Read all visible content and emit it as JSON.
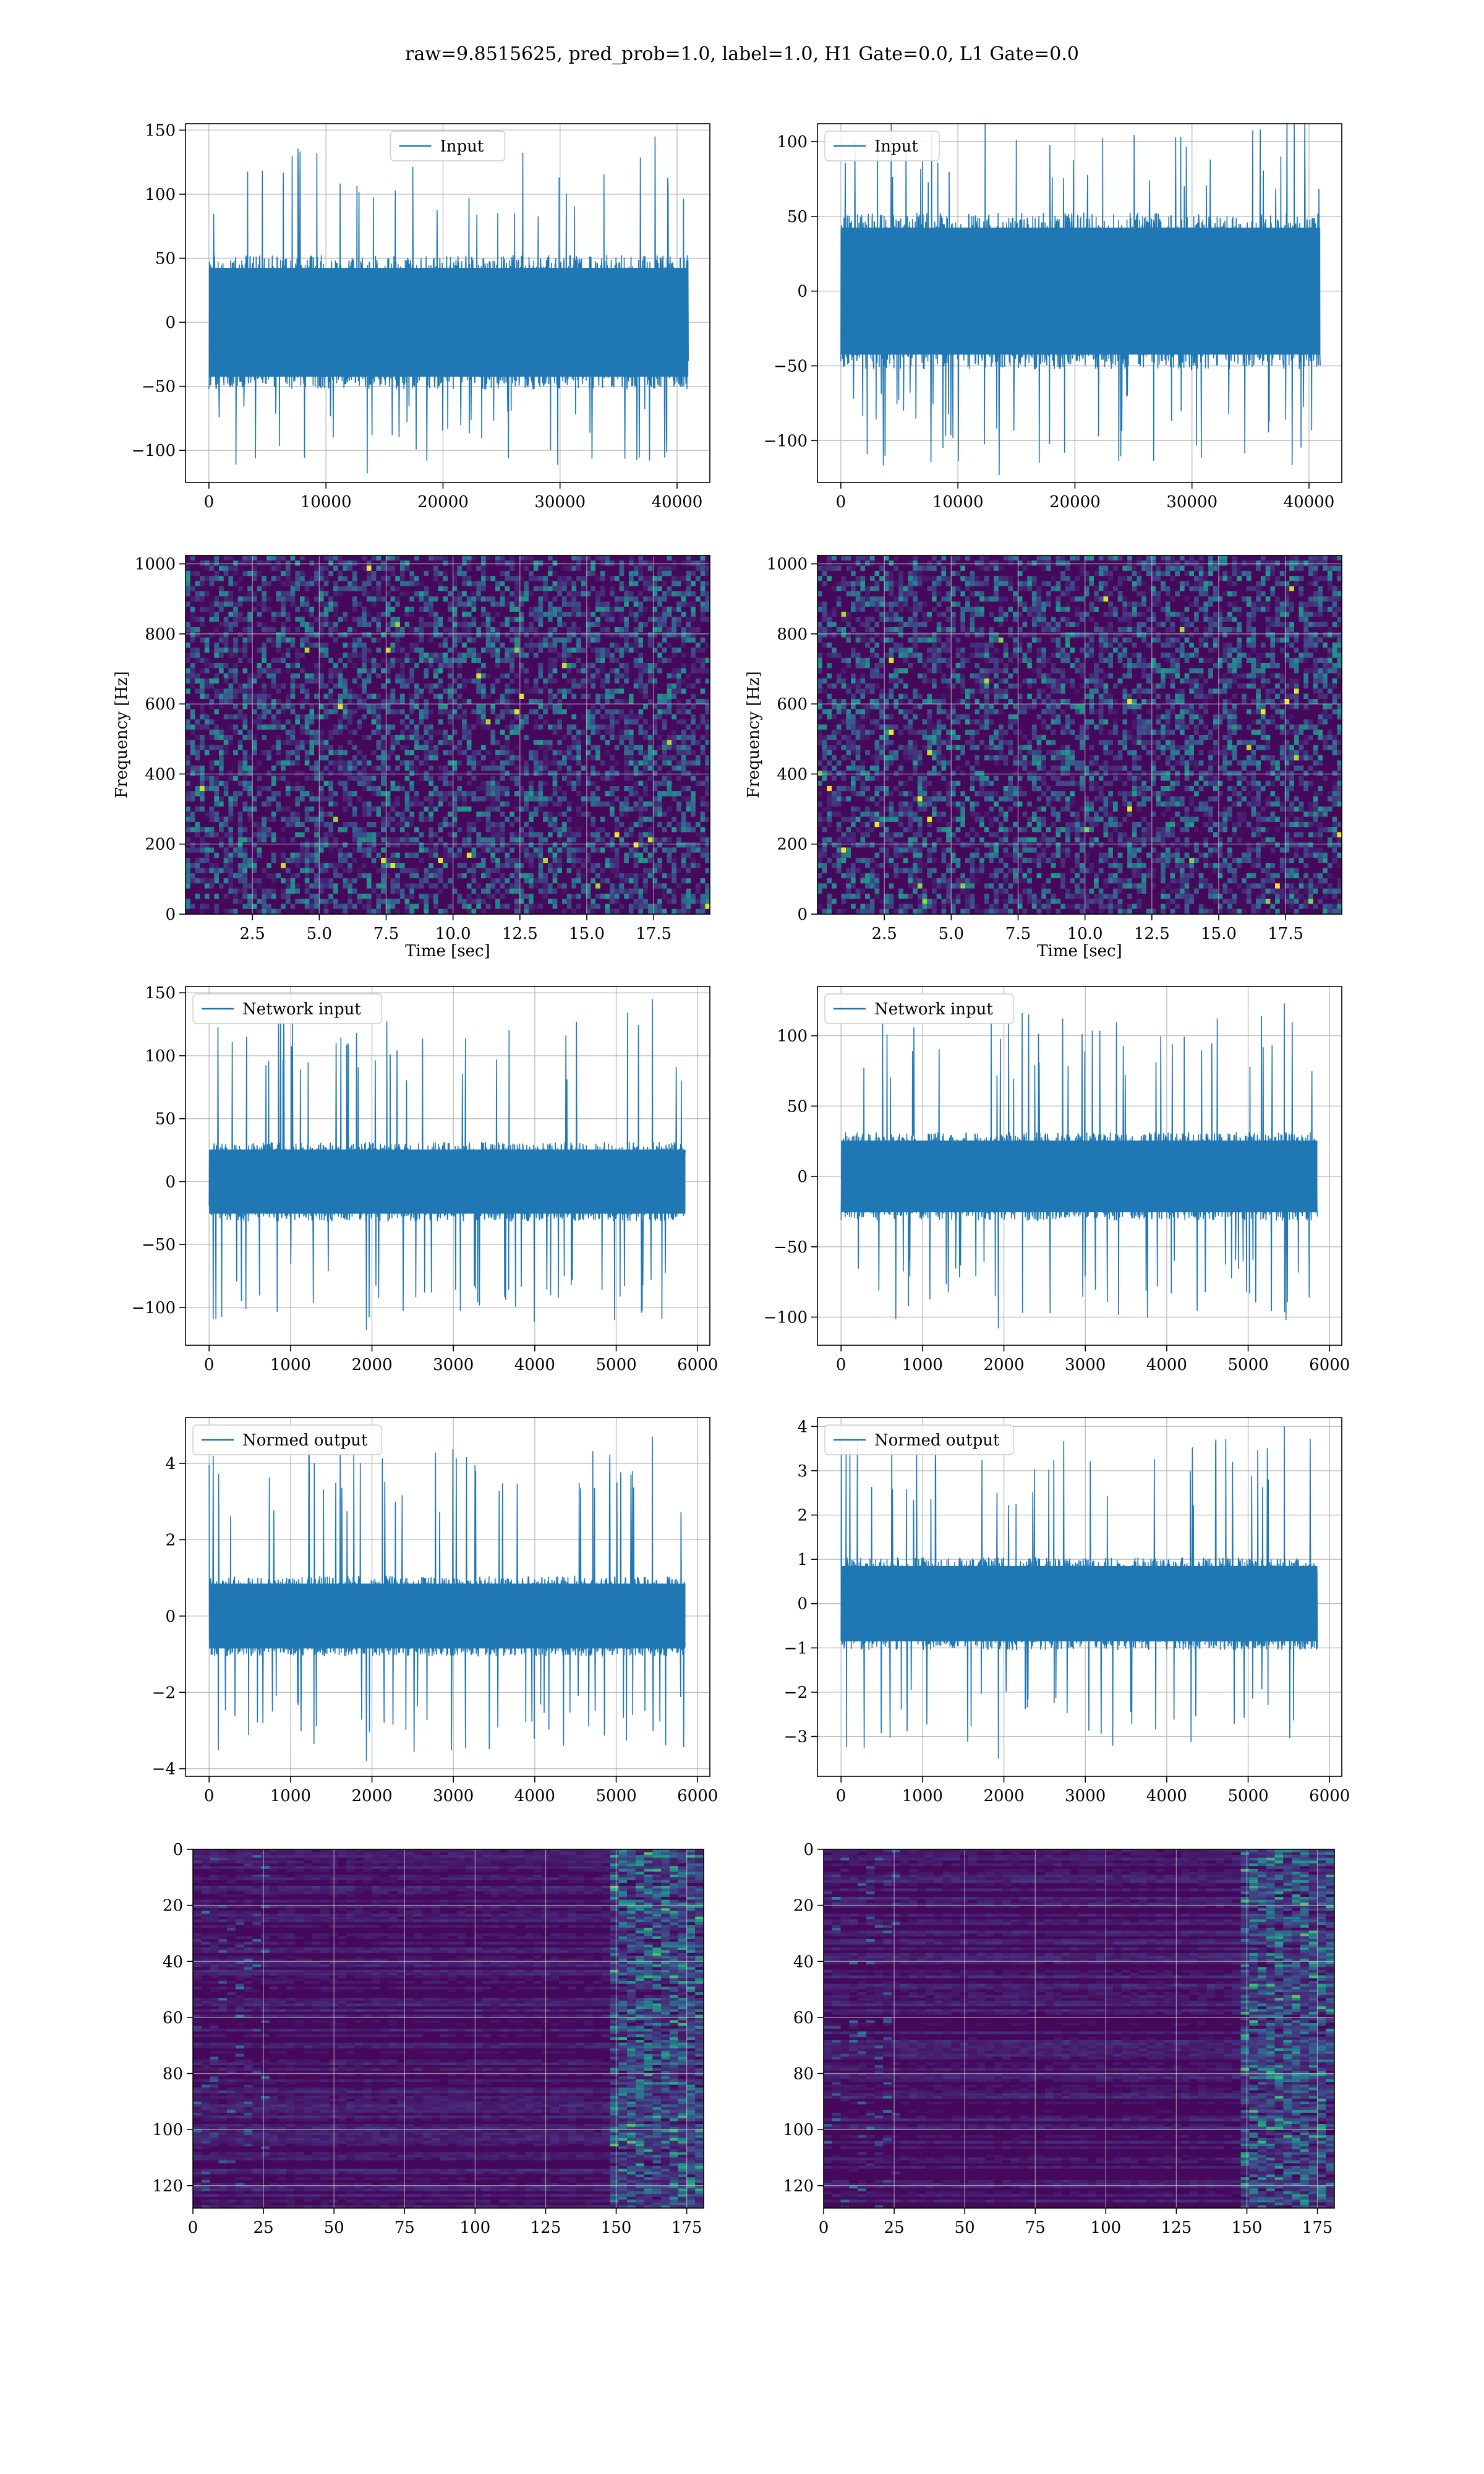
{
  "figure": {
    "title": "raw=9.8515625, pred_prob=1.0, label=1.0, H1 Gate=0.0, L1 Gate=0.0"
  },
  "colors": {
    "series": "#1f77b4",
    "grid": "#b0b0b0",
    "viridis_dark": "#440154",
    "viridis_mid": "#21918c",
    "viridis_bright": "#fde725"
  },
  "chart_data": [
    {
      "id": "h1-input",
      "type": "line",
      "legend": "Input",
      "legend_loc": "upper center",
      "xlim": [
        -2000,
        42800
      ],
      "ylim": [
        -125,
        155
      ],
      "xticks": [
        0,
        10000,
        20000,
        30000,
        40000
      ],
      "yticks": [
        -100,
        -50,
        0,
        50,
        100,
        150
      ],
      "xlabel": "",
      "ylabel": "",
      "x_extent": [
        0,
        40960
      ],
      "band": [
        -50,
        50
      ],
      "spike_max": 145,
      "spike_min": -118,
      "grid": true
    },
    {
      "id": "l1-input",
      "type": "line",
      "legend": "Input",
      "legend_loc": "upper left",
      "xlim": [
        -2000,
        42800
      ],
      "ylim": [
        -128,
        112
      ],
      "xticks": [
        0,
        10000,
        20000,
        30000,
        40000
      ],
      "yticks": [
        -100,
        -50,
        0,
        50,
        100
      ],
      "xlabel": "",
      "ylabel": "",
      "x_extent": [
        0,
        40960
      ],
      "band": [
        -50,
        50
      ],
      "spike_max": 123,
      "spike_min": -123,
      "grid": true
    },
    {
      "id": "h1-spectrogram",
      "type": "heatmap",
      "xlim": [
        0,
        19.6
      ],
      "ylim": [
        0,
        1024
      ],
      "xticks": [
        2.5,
        5.0,
        7.5,
        10.0,
        12.5,
        15.0,
        17.5
      ],
      "yticks": [
        0,
        200,
        400,
        600,
        800,
        1000
      ],
      "xlabel": "Time [sec]",
      "ylabel": "Frequency [Hz]",
      "colormap": "viridis",
      "grid": true
    },
    {
      "id": "l1-spectrogram",
      "type": "heatmap",
      "xlim": [
        0,
        19.6
      ],
      "ylim": [
        0,
        1024
      ],
      "xticks": [
        2.5,
        5.0,
        7.5,
        10.0,
        12.5,
        15.0,
        17.5
      ],
      "yticks": [
        0,
        200,
        400,
        600,
        800,
        1000
      ],
      "xlabel": "Time [sec]",
      "ylabel": "Frequency [Hz]",
      "colormap": "viridis",
      "grid": true
    },
    {
      "id": "h1-network-input",
      "type": "line",
      "legend": "Network input",
      "legend_loc": "upper left",
      "xlim": [
        -290,
        6150
      ],
      "ylim": [
        -130,
        155
      ],
      "xticks": [
        0,
        1000,
        2000,
        3000,
        4000,
        5000,
        6000
      ],
      "yticks": [
        -100,
        -50,
        0,
        50,
        100,
        150
      ],
      "xlabel": "",
      "ylabel": "",
      "x_extent": [
        0,
        5850
      ],
      "band": [
        -30,
        30
      ],
      "spike_max": 145,
      "spike_min": -118,
      "grid": true
    },
    {
      "id": "l1-network-input",
      "type": "line",
      "legend": "Network input",
      "legend_loc": "upper left",
      "xlim": [
        -290,
        6150
      ],
      "ylim": [
        -120,
        135
      ],
      "xticks": [
        0,
        1000,
        2000,
        3000,
        4000,
        5000,
        6000
      ],
      "yticks": [
        -100,
        -50,
        0,
        50,
        100
      ],
      "xlabel": "",
      "ylabel": "",
      "x_extent": [
        0,
        5850
      ],
      "band": [
        -30,
        30
      ],
      "spike_max": 123,
      "spike_min": -108,
      "grid": true
    },
    {
      "id": "h1-normed-output",
      "type": "line",
      "legend": "Normed output",
      "legend_loc": "upper left",
      "xlim": [
        -290,
        6150
      ],
      "ylim": [
        -4.2,
        5.2
      ],
      "xticks": [
        0,
        1000,
        2000,
        3000,
        4000,
        5000,
        6000
      ],
      "yticks": [
        -4,
        -2,
        0,
        2,
        4
      ],
      "xlabel": "",
      "ylabel": "",
      "x_extent": [
        0,
        5850
      ],
      "band": [
        -1.0,
        1.0
      ],
      "spike_max": 4.7,
      "spike_min": -3.8,
      "grid": true
    },
    {
      "id": "l1-normed-output",
      "type": "line",
      "legend": "Normed output",
      "legend_loc": "upper left",
      "xlim": [
        -290,
        6150
      ],
      "ylim": [
        -3.9,
        4.2
      ],
      "xticks": [
        0,
        1000,
        2000,
        3000,
        4000,
        5000,
        6000
      ],
      "yticks": [
        -3,
        -2,
        -1,
        0,
        1,
        2,
        3,
        4
      ],
      "xlabel": "",
      "ylabel": "",
      "x_extent": [
        0,
        5850
      ],
      "band": [
        -1.0,
        1.0
      ],
      "spike_max": 4.0,
      "spike_min": -3.5,
      "grid": true
    },
    {
      "id": "h1-feature-map",
      "type": "heatmap",
      "xlim": [
        0,
        181
      ],
      "ylim": [
        128,
        0
      ],
      "xticks": [
        0,
        25,
        50,
        75,
        100,
        125,
        150,
        175
      ],
      "yticks": [
        0,
        20,
        40,
        60,
        80,
        100,
        120
      ],
      "xlabel": "",
      "ylabel": "",
      "colormap": "viridis",
      "grid": true
    },
    {
      "id": "l1-feature-map",
      "type": "heatmap",
      "xlim": [
        0,
        181
      ],
      "ylim": [
        128,
        0
      ],
      "xticks": [
        0,
        25,
        50,
        75,
        100,
        125,
        150,
        175
      ],
      "yticks": [
        0,
        20,
        40,
        60,
        80,
        100,
        120
      ],
      "xlabel": "",
      "ylabel": "",
      "colormap": "viridis",
      "grid": true
    }
  ]
}
